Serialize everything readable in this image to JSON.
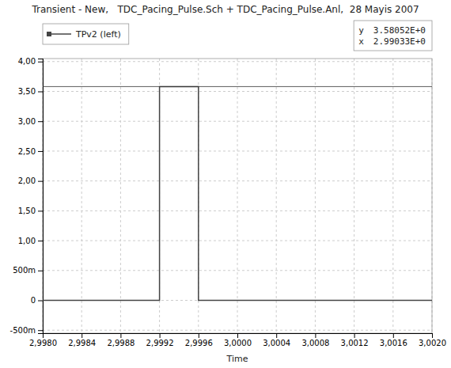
{
  "chart_data": {
    "type": "line",
    "title": "Transient - New,   TDC_Pacing_Pulse.Sch + TDC_Pacing_Pulse.Anl,  28 Mayis 2007",
    "xlabel": "Time",
    "series": [
      {
        "name": "TPv2 (left)",
        "color": "#444444",
        "x": [
          2.998,
          2.9992,
          2.9992,
          2.9996,
          2.9996,
          3.002
        ],
        "values": [
          0.0,
          0.0,
          3.58052,
          3.58052,
          0.0,
          0.0
        ]
      }
    ],
    "cursor": {
      "y": 3.58052,
      "y_label": "y",
      "y_text": "3.58052E+0",
      "x_label": "x",
      "x_text": "2.99033E+0"
    },
    "xlim": [
      2.998,
      3.002
    ],
    "ylim": [
      -0.55,
      4.05
    ],
    "xticks": [
      {
        "value": 2.998,
        "label": "2,9980"
      },
      {
        "value": 2.9984,
        "label": "2,9984"
      },
      {
        "value": 2.9988,
        "label": "2,9988"
      },
      {
        "value": 2.9992,
        "label": "2,9992"
      },
      {
        "value": 2.9996,
        "label": "2,9996"
      },
      {
        "value": 3.0,
        "label": "3,0000"
      },
      {
        "value": 3.0004,
        "label": "3,0004"
      },
      {
        "value": 3.0008,
        "label": "3,0008"
      },
      {
        "value": 3.0012,
        "label": "3,0012"
      },
      {
        "value": 3.0016,
        "label": "3,0016"
      },
      {
        "value": 3.002,
        "label": "3,0020"
      }
    ],
    "yticks": [
      {
        "value": -0.5,
        "label": "-500m"
      },
      0,
      {
        "value": 0.5,
        "label": "500m"
      },
      {
        "value": 1.0,
        "label": "1,00"
      },
      {
        "value": 1.5,
        "label": "1,50"
      },
      {
        "value": 2.0,
        "label": "2,00"
      },
      {
        "value": 2.5,
        "label": "2,50"
      },
      {
        "value": 3.0,
        "label": "3,00"
      },
      {
        "value": 3.5,
        "label": "3,50"
      },
      {
        "value": 4.0,
        "label": "4,00"
      }
    ],
    "grid": true,
    "legend": "top-left"
  }
}
